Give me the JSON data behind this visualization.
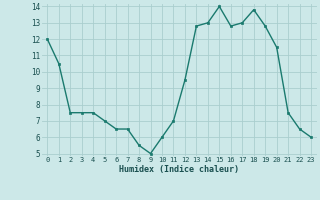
{
  "x": [
    0,
    1,
    2,
    3,
    4,
    5,
    6,
    7,
    8,
    9,
    10,
    11,
    12,
    13,
    14,
    15,
    16,
    17,
    18,
    19,
    20,
    21,
    22,
    23
  ],
  "y": [
    12,
    10.5,
    7.5,
    7.5,
    7.5,
    7.0,
    6.5,
    6.5,
    5.5,
    5.0,
    6.0,
    7.0,
    9.5,
    12.8,
    13.0,
    14.0,
    12.8,
    13.0,
    13.8,
    12.8,
    11.5,
    7.5,
    6.5,
    6.0
  ],
  "xlabel": "Humidex (Indice chaleur)",
  "ylim": [
    5,
    14
  ],
  "xlim": [
    -0.5,
    23.5
  ],
  "yticks": [
    5,
    6,
    7,
    8,
    9,
    10,
    11,
    12,
    13,
    14
  ],
  "xticks": [
    0,
    1,
    2,
    3,
    4,
    5,
    6,
    7,
    8,
    9,
    10,
    11,
    12,
    13,
    14,
    15,
    16,
    17,
    18,
    19,
    20,
    21,
    22,
    23
  ],
  "line_color": "#1a7a6e",
  "marker_color": "#1a7a6e",
  "bg_color": "#cce8e8",
  "grid_color": "#aacece",
  "label_color": "#1a3a6e",
  "tick_label_color": "#1a5050"
}
